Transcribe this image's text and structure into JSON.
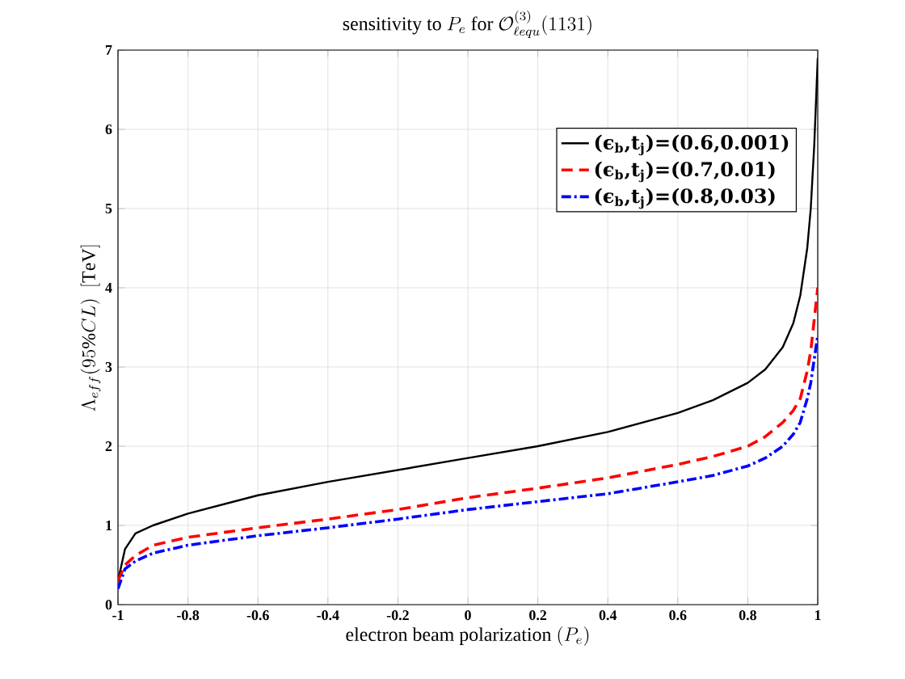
{
  "chart_data": {
    "type": "line",
    "title": "\\text{sensitivity to } P_e \\text{ for } \\mathcal{O}^{(3)}_{\\ell equ}(1131)",
    "xlabel": "\\text{electron beam polarization } (P_e)",
    "ylabel": "\\Lambda_{eff}(95\\%CL)\\ \\ \\mathrm{[TeV]}",
    "xlim": [
      -1,
      1
    ],
    "ylim": [
      0,
      7
    ],
    "xticks": [
      -1,
      -0.8,
      -0.6,
      -0.4,
      -0.2,
      0,
      0.2,
      0.4,
      0.6,
      0.8,
      1
    ],
    "yticks": [
      0,
      1,
      2,
      3,
      4,
      5,
      6,
      7
    ],
    "grid": true,
    "legend": "top right",
    "x": [
      -1,
      -0.98,
      -0.95,
      -0.9,
      -0.8,
      -0.6,
      -0.4,
      -0.2,
      0,
      0.2,
      0.4,
      0.6,
      0.7,
      0.8,
      0.85,
      0.9,
      0.93,
      0.95,
      0.97,
      0.98,
      0.99,
      1
    ],
    "series": [
      {
        "name": "(ϵ$_{b}$,t$_{j}$)=(0.6,0.001)",
        "color": "#000000",
        "line_style": "solid",
        "values": [
          0.3,
          0.7,
          0.9,
          1.0,
          1.15,
          1.38,
          1.55,
          1.7,
          1.85,
          2.0,
          2.18,
          2.42,
          2.58,
          2.8,
          2.97,
          3.25,
          3.55,
          3.9,
          4.5,
          5.0,
          5.8,
          6.9
        ]
      },
      {
        "name": "(ϵ$_{b}$,t$_{j}$)=(0.7,0.01)",
        "color": "#ff0000",
        "line_style": "dashed",
        "values": [
          0.3,
          0.5,
          0.62,
          0.75,
          0.85,
          0.97,
          1.08,
          1.2,
          1.35,
          1.47,
          1.6,
          1.77,
          1.87,
          2.0,
          2.12,
          2.3,
          2.45,
          2.6,
          2.95,
          3.2,
          3.6,
          4.0
        ]
      },
      {
        "name": "(ϵ$_{b}$,t$_{j}$)=(0.8,0.03)",
        "color": "#0000ff",
        "line_style": "dashdot",
        "values": [
          0.2,
          0.45,
          0.55,
          0.65,
          0.75,
          0.87,
          0.97,
          1.08,
          1.2,
          1.3,
          1.4,
          1.55,
          1.63,
          1.75,
          1.85,
          2.0,
          2.15,
          2.3,
          2.6,
          2.8,
          3.1,
          3.4
        ]
      }
    ]
  }
}
